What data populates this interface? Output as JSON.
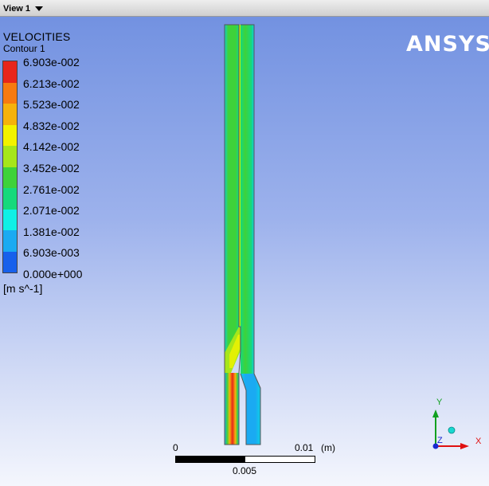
{
  "window": {
    "view_label": "View 1"
  },
  "legend": {
    "title": "VELOCITIES",
    "subtitle": "Contour 1",
    "levels": [
      "6.903e-002",
      "6.213e-002",
      "5.523e-002",
      "4.832e-002",
      "4.142e-002",
      "3.452e-002",
      "2.761e-002",
      "2.071e-002",
      "1.381e-002",
      "6.903e-003",
      "0.000e+000"
    ],
    "bands": [
      "#e8261a",
      "#f77a10",
      "#f5b20c",
      "#f2f200",
      "#a6e61a",
      "#3ed23a",
      "#16d97c",
      "#0ff0e6",
      "#1aaaf2",
      "#1760ec"
    ],
    "units": "[m s^-1]"
  },
  "logo": "ANSYS",
  "scale": {
    "left_label": "0",
    "right_label": "0.01",
    "unit": "(m)",
    "mid_label": "0.005"
  },
  "triad": {
    "x": "X",
    "y": "Y",
    "z": "Z"
  },
  "colors": {
    "background_top": "#6f8fe0",
    "background_bottom": "#f4f6fd",
    "channel_main": "#3ed23a",
    "core": "#c8f000",
    "peak": "#e8261a"
  }
}
